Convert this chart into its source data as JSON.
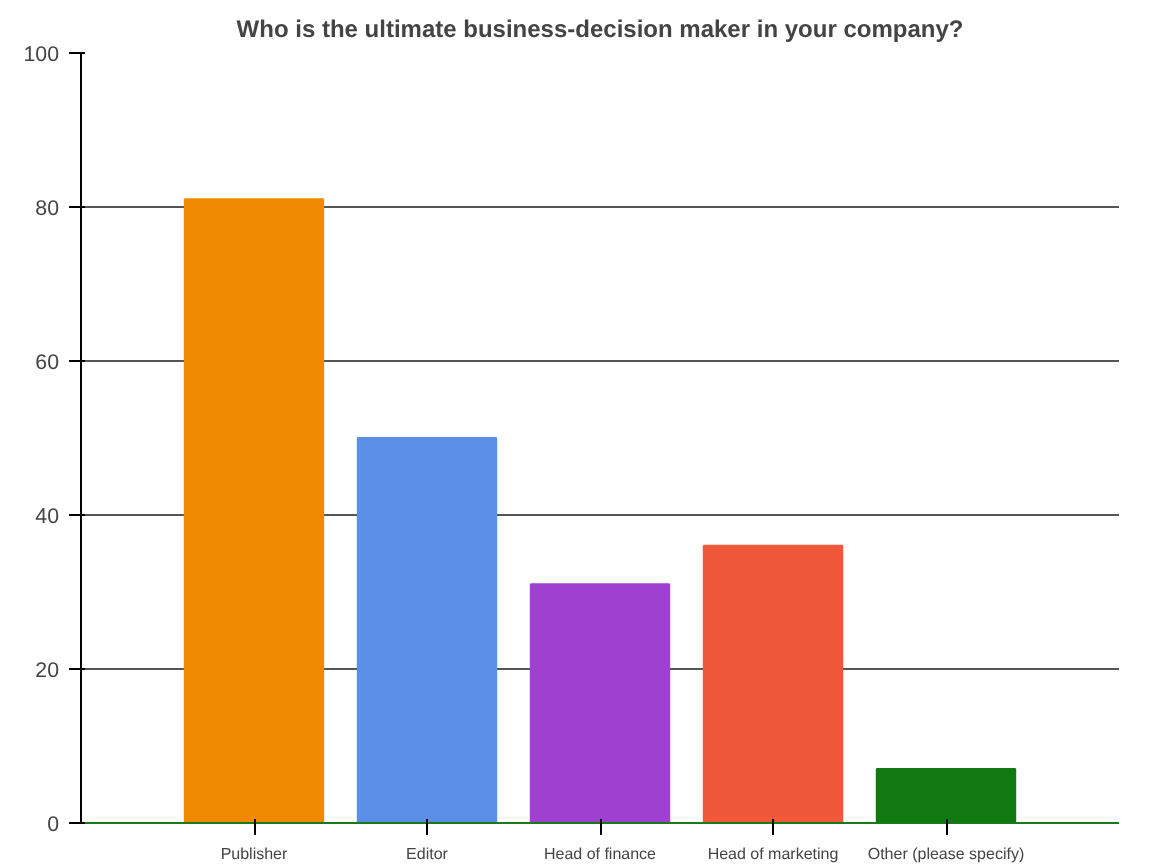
{
  "chart_data": {
    "type": "bar",
    "title": "Who is the ultimate business-decision maker in your company?",
    "categories": [
      "Publisher",
      "Editor",
      "Head of finance",
      "Head of marketing",
      "Other (please specify)"
    ],
    "values": [
      81,
      50,
      31,
      36,
      7
    ],
    "colors": [
      "#f08a00",
      "#5b8fe6",
      "#a040d0",
      "#f0583a",
      "#107a10"
    ],
    "ylim": [
      0,
      100
    ],
    "yticks": [
      0,
      20,
      40,
      60,
      80,
      100
    ],
    "grid": "y"
  }
}
